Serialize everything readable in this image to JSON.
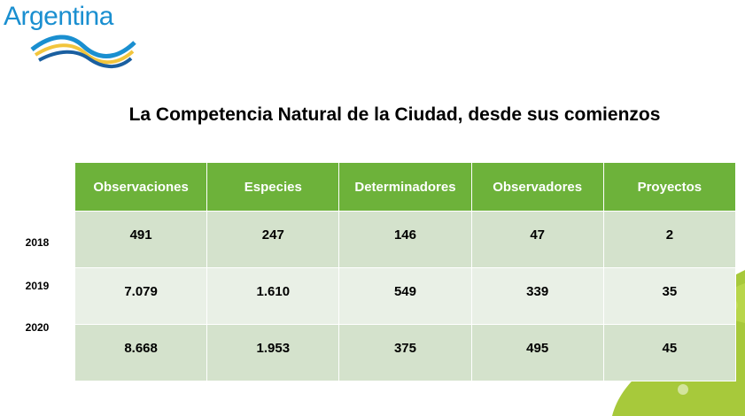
{
  "brand": {
    "name": "Argentina"
  },
  "title": "La Competencia Natural de la Ciudad, desde sus comienzos",
  "table": {
    "headers": [
      "Observaciones",
      "Especies",
      "Determinadores",
      "Observadores",
      "Proyectos"
    ],
    "rows": [
      {
        "year": "2018",
        "values": [
          "491",
          "247",
          "146",
          "47",
          "2"
        ]
      },
      {
        "year": "2019",
        "values": [
          "7.079",
          "1.610",
          "549",
          "339",
          "35"
        ]
      },
      {
        "year": "2020",
        "values": [
          "8.668",
          "1.953",
          "375",
          "495",
          "45"
        ]
      }
    ]
  },
  "colors": {
    "header_bg": "#6db23a",
    "row_odd": "#d4e2cc",
    "row_even": "#e9f0e6",
    "brand_blue": "#1a8fd0",
    "leaf": "#a7c93b"
  }
}
